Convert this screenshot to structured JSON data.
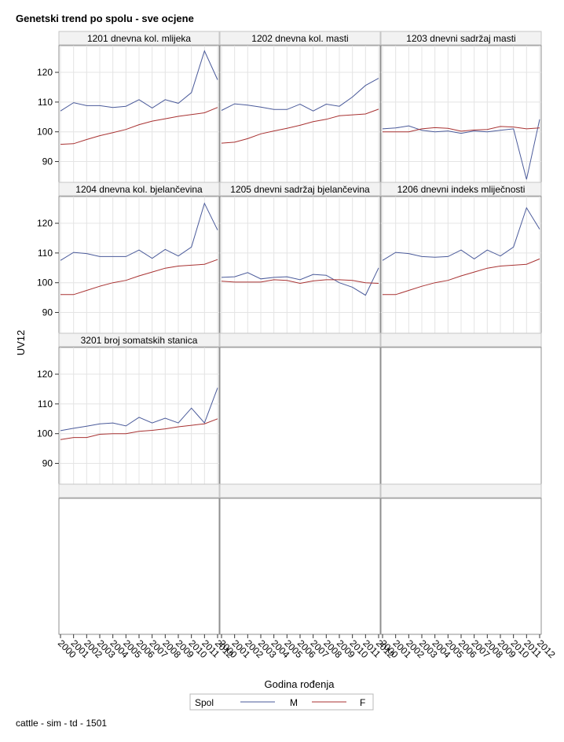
{
  "title": "Genetski trend po spolu - sve ocjene",
  "footnote": "cattle - sim - td - 1501",
  "colors": {
    "M": "#4a5a9a",
    "F": "#a83232",
    "grid": "#e4e4e4",
    "frame": "#8f8f8f",
    "header_bg": "#f2f2f2"
  },
  "chart_data": {
    "type": "line",
    "panel_layout": "3x3",
    "xlabel": "Godina rođenja",
    "ylabel": "UV12",
    "ylim": [
      83,
      129
    ],
    "yticks": [
      90,
      100,
      110,
      120
    ],
    "xlim": [
      2000,
      2012
    ],
    "xticks": [
      2000,
      2001,
      2002,
      2003,
      2004,
      2005,
      2006,
      2007,
      2008,
      2009,
      2010,
      2011,
      2012
    ],
    "grid": true,
    "legend": {
      "title": "Spol",
      "position": "bottom",
      "entries": [
        "M",
        "F"
      ]
    },
    "panels": [
      {
        "title": "1201 dnevna kol. mlijeka",
        "series": [
          {
            "name": "M",
            "values": [
              107,
              109.8,
              108.8,
              108.8,
              108.2,
              108.6,
              110.8,
              108,
              110.8,
              109.6,
              113.2,
              127.2,
              117.5
            ]
          },
          {
            "name": "F",
            "values": [
              95.8,
              96,
              97.4,
              98.7,
              99.7,
              100.8,
              102.4,
              103.6,
              104.4,
              105.2,
              105.8,
              106.4,
              108.2
            ]
          }
        ]
      },
      {
        "title": "1202 dnevna kol. masti",
        "series": [
          {
            "name": "M",
            "values": [
              107.2,
              109.4,
              109,
              108.3,
              107.5,
              107.5,
              109.3,
              107,
              109.3,
              108.6,
              111.7,
              115.6,
              118
            ]
          },
          {
            "name": "F",
            "values": [
              96.2,
              96.5,
              97.7,
              99.3,
              100.3,
              101.2,
              102.2,
              103.4,
              104.2,
              105.4,
              105.7,
              106,
              107.6
            ]
          }
        ]
      },
      {
        "title": "1203 dnevni sadržaj masti",
        "series": [
          {
            "name": "M",
            "values": [
              101,
              101.3,
              102,
              100.5,
              100,
              100.3,
              99.5,
              100.3,
              100,
              100.5,
              101,
              84,
              104.2
            ]
          },
          {
            "name": "F",
            "values": [
              100,
              100,
              100,
              101,
              101.4,
              101.2,
              100.2,
              100.6,
              100.8,
              101.8,
              101.6,
              101,
              101.3
            ]
          }
        ]
      },
      {
        "title": "1204 dnevna kol. bjelančevina",
        "series": [
          {
            "name": "M",
            "values": [
              107.5,
              110.2,
              109.8,
              108.8,
              108.8,
              108.8,
              111,
              108.2,
              111.2,
              109,
              112,
              126.7,
              117.7
            ]
          },
          {
            "name": "F",
            "values": [
              96,
              96,
              97.4,
              98.8,
              100,
              100.8,
              102.3,
              103.6,
              104.9,
              105.6,
              105.9,
              106.2,
              107.8
            ]
          }
        ]
      },
      {
        "title": "1205 dnevni sadržaj bjelančevina",
        "series": [
          {
            "name": "M",
            "values": [
              101.8,
              102,
              103.4,
              101.3,
              101.8,
              102,
              101,
              102.8,
              102.5,
              100,
              98.5,
              95.8,
              105
            ]
          },
          {
            "name": "F",
            "values": [
              100.5,
              100.2,
              100.2,
              100.2,
              101,
              100.8,
              99.8,
              100.6,
              101,
              101,
              100.8,
              100,
              99.8
            ]
          }
        ]
      },
      {
        "title": "1206 dnevni indeks mliječnosti",
        "series": [
          {
            "name": "M",
            "values": [
              107.5,
              110.2,
              109.8,
              108.8,
              108.6,
              108.8,
              111,
              108,
              111,
              109,
              112,
              125.2,
              118
            ]
          },
          {
            "name": "F",
            "values": [
              96,
              96,
              97.4,
              98.8,
              100,
              100.8,
              102.3,
              103.6,
              104.9,
              105.6,
              105.9,
              106.2,
              108
            ]
          }
        ]
      },
      {
        "title": "3201 broj somatskih stanica",
        "series": [
          {
            "name": "M",
            "values": [
              101,
              101.8,
              102.5,
              103.3,
              103.6,
              102.6,
              105.5,
              103.6,
              105.2,
              103.6,
              108.6,
              103.6,
              115.4
            ]
          },
          {
            "name": "F",
            "values": [
              98,
              98.7,
              98.7,
              99.8,
              100,
              100,
              100.8,
              101.1,
              101.6,
              102.3,
              102.8,
              103.3,
              105
            ]
          }
        ]
      }
    ]
  }
}
